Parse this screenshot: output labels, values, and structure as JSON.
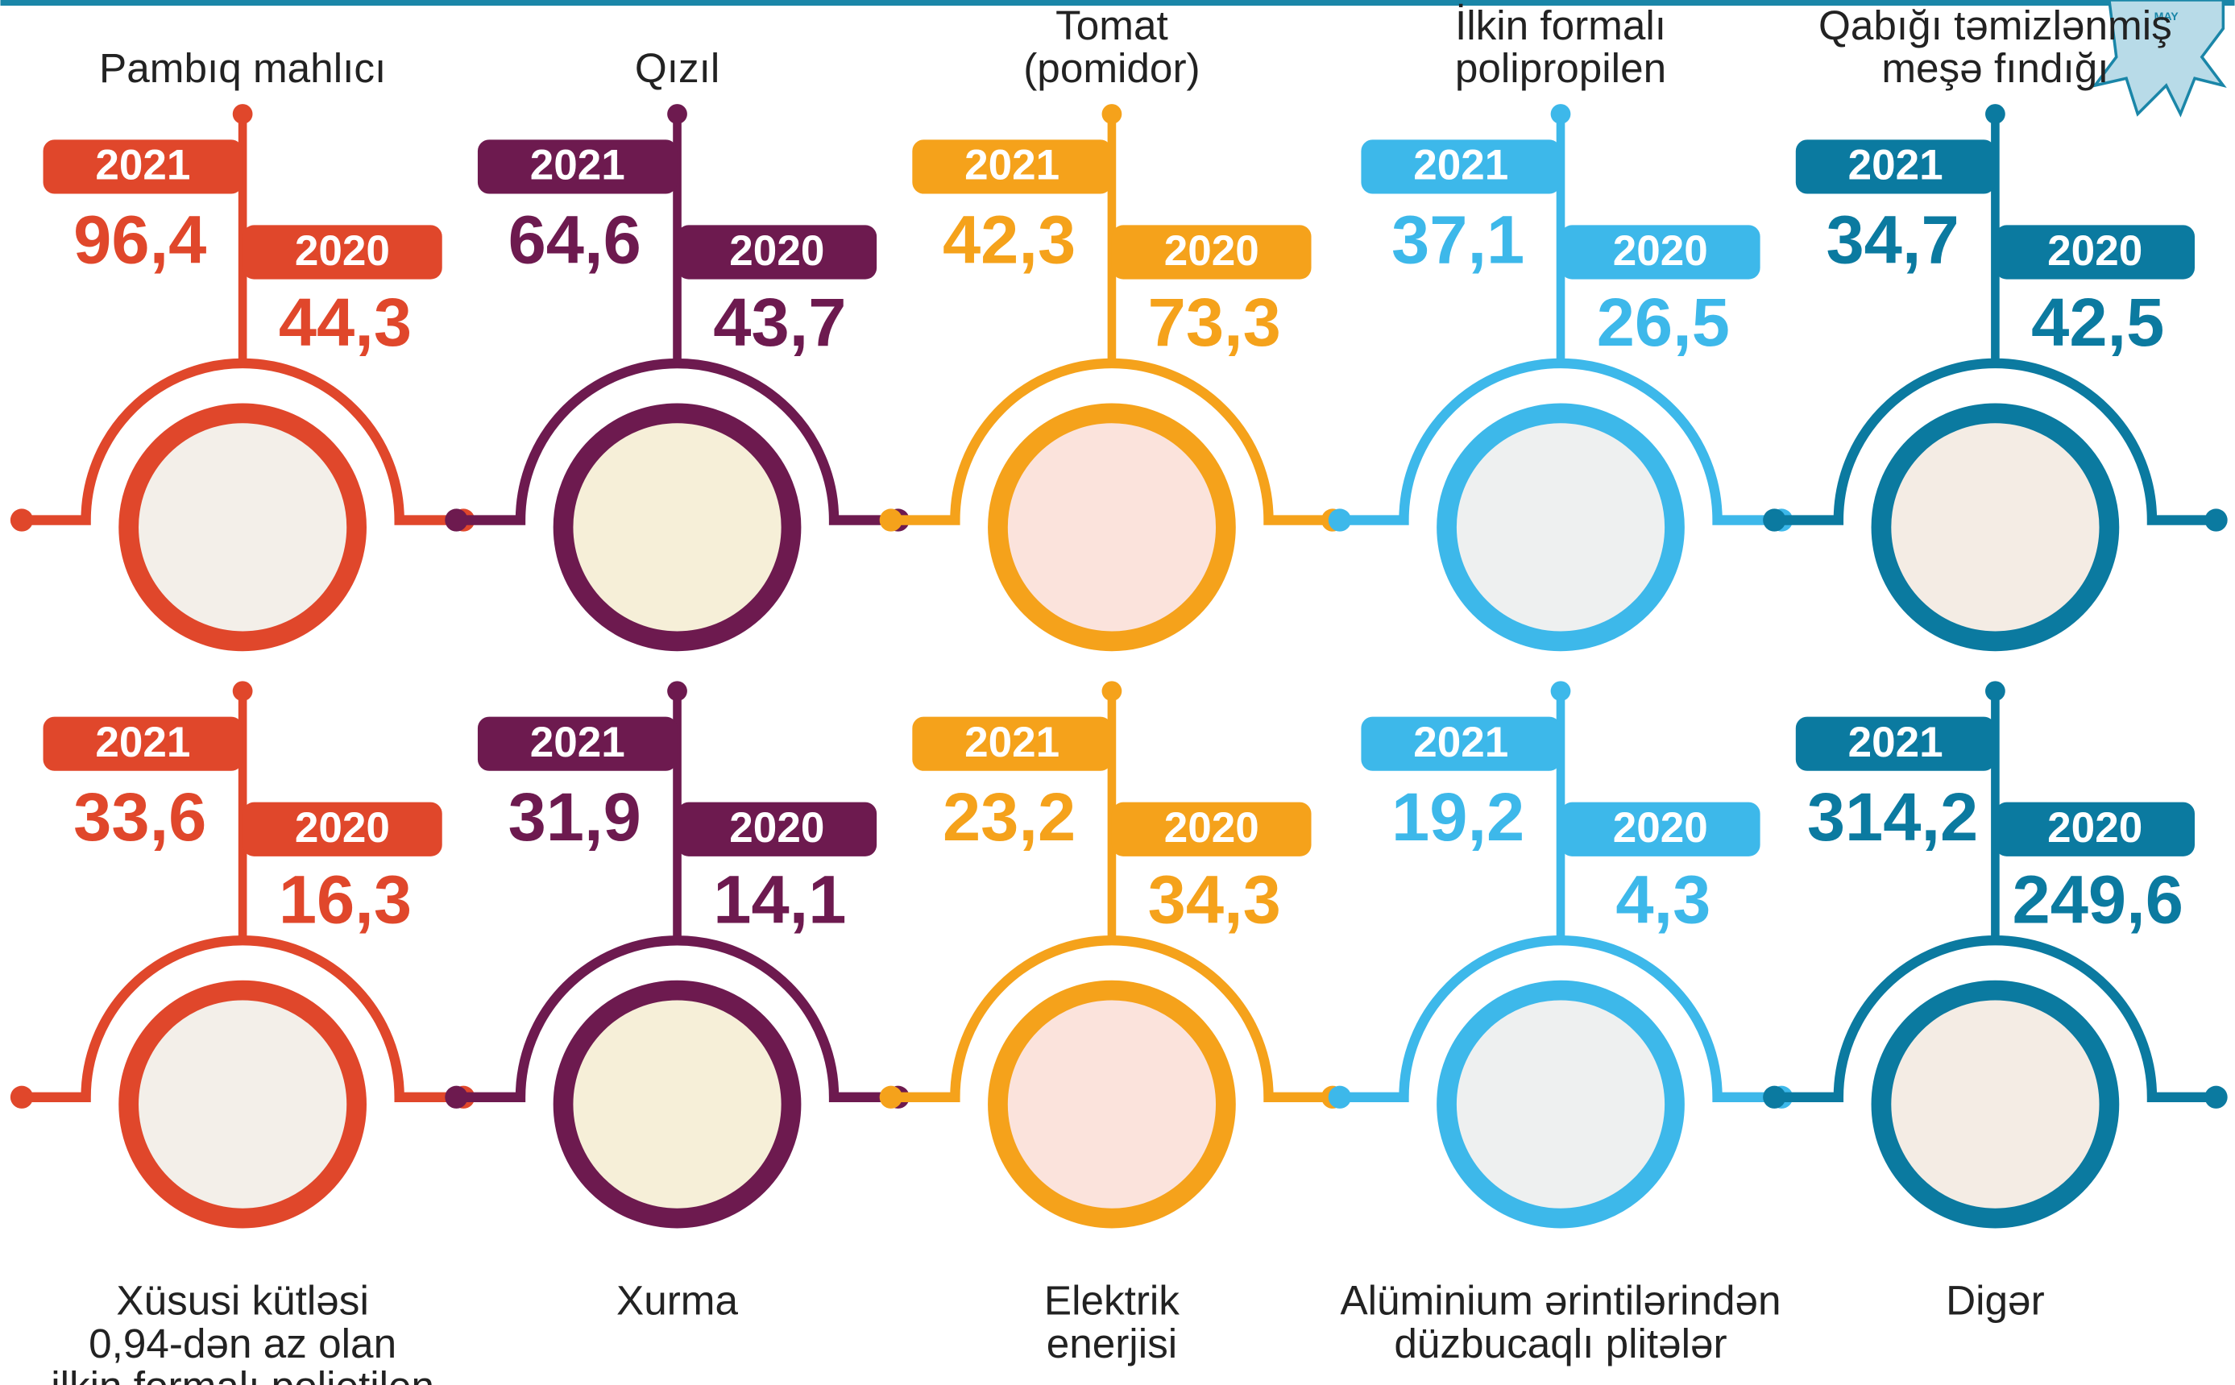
{
  "years": [
    "2021",
    "2020"
  ],
  "badge": "MAY",
  "items": [
    {
      "label": [
        "Pambıq mahlıcı"
      ],
      "v2021": "96,4",
      "v2020": "44,3"
    },
    {
      "label": [
        "Qızıl"
      ],
      "v2021": "64,6",
      "v2020": "43,7"
    },
    {
      "label": [
        "Tomat",
        "(pomidor)"
      ],
      "v2021": "42,3",
      "v2020": "73,3"
    },
    {
      "label": [
        "İlkin formalı",
        "polipropilen"
      ],
      "v2021": "37,1",
      "v2020": "26,5"
    },
    {
      "label": [
        "Qabığı təmizlənmiş",
        "meşə fındığı"
      ],
      "v2021": "34,7",
      "v2020": "42,5"
    },
    {
      "label": [
        "Xüsusi kütləsi",
        "0,94-dən az olan",
        "ilkin formalı polietilen"
      ],
      "v2021": "33,6",
      "v2020": "16,3"
    },
    {
      "label": [
        "Xurma"
      ],
      "v2021": "31,9",
      "v2020": "14,1"
    },
    {
      "label": [
        "Elektrik",
        "enerjisi"
      ],
      "v2021": "23,2",
      "v2020": "34,3"
    },
    {
      "label": [
        "Alüminium ərintilərindən",
        "düzbucaqlı plitələr"
      ],
      "v2021": "19,2",
      "v2020": "4,3"
    },
    {
      "label": [
        "Digər"
      ],
      "v2021": "314,2",
      "v2020": "249,6"
    }
  ]
}
